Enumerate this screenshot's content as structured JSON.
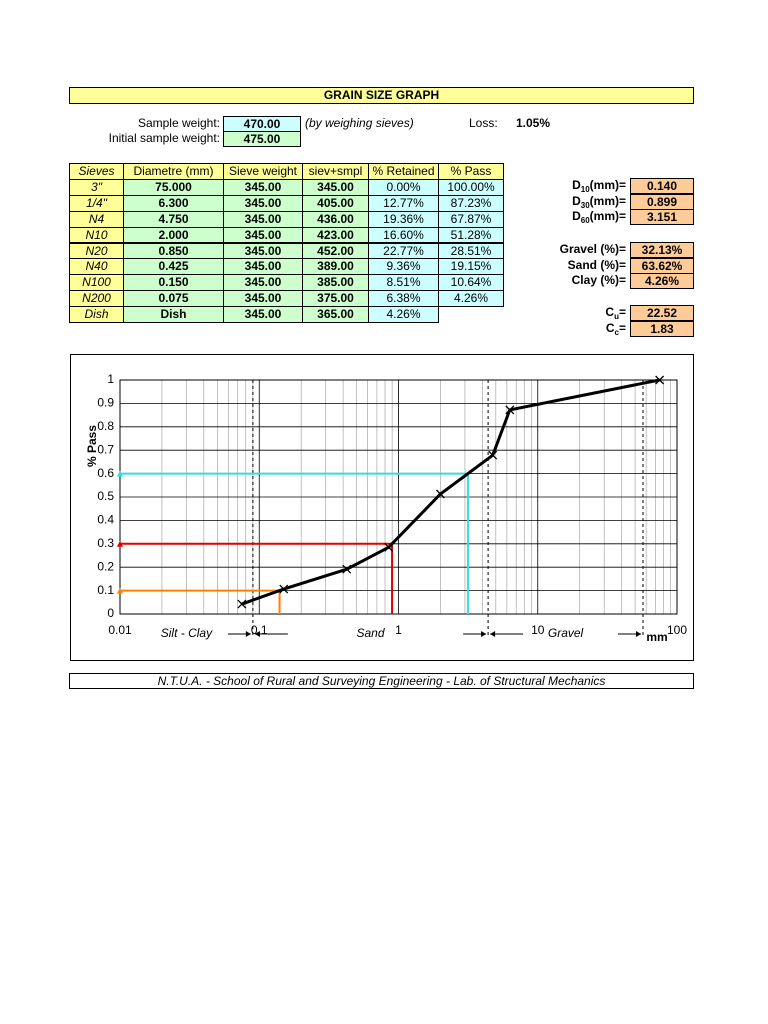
{
  "header": {
    "title": "GRAIN SIZE GRAPH"
  },
  "sample": {
    "weight_label": "Sample weight:",
    "weight": "470.00",
    "weight_note": "(by weighing sieves)",
    "loss_label": "Loss:",
    "loss": "1.05%",
    "initial_label": "Initial sample weight:",
    "initial": "475.00"
  },
  "table": {
    "columns": [
      "Sieves",
      "Diametre (mm)",
      "Sieve weight",
      "siev+smpl",
      "% Retained",
      "% Pass"
    ],
    "rows": [
      [
        "3\"",
        "75.000",
        "345.00",
        "345.00",
        "0.00%",
        "100.00%"
      ],
      [
        "1/4\"",
        "6.300",
        "345.00",
        "405.00",
        "12.77%",
        "87.23%"
      ],
      [
        "N4",
        "4.750",
        "345.00",
        "436.00",
        "19.36%",
        "67.87%"
      ],
      [
        "N10",
        "2.000",
        "345.00",
        "423.00",
        "16.60%",
        "51.28%"
      ],
      [
        "N20",
        "0.850",
        "345.00",
        "452.00",
        "22.77%",
        "28.51%"
      ],
      [
        "N40",
        "0.425",
        "345.00",
        "389.00",
        "9.36%",
        "19.15%"
      ],
      [
        "N100",
        "0.150",
        "345.00",
        "385.00",
        "8.51%",
        "10.64%"
      ],
      [
        "N200",
        "0.075",
        "345.00",
        "375.00",
        "6.38%",
        "4.26%"
      ],
      [
        "Dish",
        "Dish",
        "345.00",
        "365.00",
        "4.26%"
      ]
    ]
  },
  "results": {
    "d": [
      {
        "symbol": "D",
        "sub": "10",
        "unit": "(mm)=",
        "value": "0.140"
      },
      {
        "symbol": "D",
        "sub": "30",
        "unit": "(mm)=",
        "value": "0.899"
      },
      {
        "symbol": "D",
        "sub": "60",
        "unit": "(mm)=",
        "value": "3.151"
      }
    ],
    "fractions": [
      {
        "label": "Gravel (%)=",
        "value": "32.13%"
      },
      {
        "label": "Sand (%)=",
        "value": "63.62%"
      },
      {
        "label": "Clay (%)=",
        "value": "4.26%"
      }
    ],
    "coefficients": [
      {
        "symbol": "C",
        "sub": "u",
        "unit": "=",
        "value": "22.52"
      },
      {
        "symbol": "C",
        "sub": "c",
        "unit": "=",
        "value": "1.83"
      }
    ]
  },
  "chart_data": {
    "type": "line",
    "y_label": "% Pass",
    "x_label": "mm",
    "x_log": true,
    "xlim": [
      0.01,
      100
    ],
    "ylim": [
      0,
      1
    ],
    "xticks": [
      0.01,
      0.1,
      1,
      10,
      100
    ],
    "yticks": [
      0,
      0.1,
      0.2,
      0.3,
      0.4,
      0.5,
      0.6,
      0.7,
      0.8,
      0.9,
      1
    ],
    "series": [
      {
        "color": "#000000",
        "x": [
          75,
          6.3,
          4.75,
          2,
          0.85,
          0.425,
          0.15,
          0.075
        ],
        "values": [
          1.0,
          0.8723,
          0.6787,
          0.5128,
          0.2851,
          0.1915,
          0.1064,
          0.0426
        ]
      }
    ],
    "boundaries": [
      0.09,
      4.4,
      57
    ],
    "zones": [
      "Silt - Clay",
      "Sand",
      "Gravel"
    ],
    "references": [
      {
        "x": 0.14,
        "y": 0.1,
        "color": "#ff8000"
      },
      {
        "x": 0.899,
        "y": 0.3,
        "color": "#e00000"
      },
      {
        "x": 3.151,
        "y": 0.6,
        "color": "#33dddd"
      }
    ],
    "grid": true
  },
  "footer": "N.T.U.A. - School of Rural and Surveying Engineering - Lab. of Structural Mechanics"
}
